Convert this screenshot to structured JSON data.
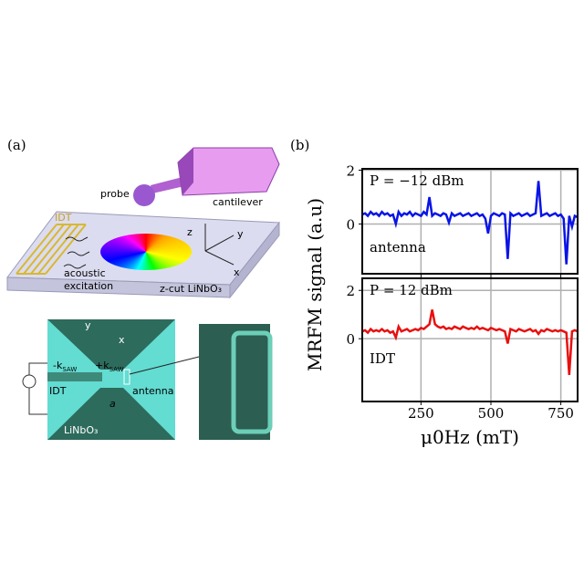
{
  "panel_a": {
    "label": "(a)",
    "probe": "probe",
    "cantilever": "cantilever",
    "idt_top": "IDT",
    "axis_z": "z",
    "axis_y": "y",
    "axis_x": "x",
    "acoustic": "acoustic",
    "excitation": "excitation",
    "substrate": "z-cut LiNbO₃",
    "micro": {
      "axis_y": "y",
      "axis_x": "x",
      "k_minus": "-k",
      "k_plus": "+k",
      "k_sub_minus": "SAW",
      "k_sub_plus": "SAW",
      "idt": "IDT",
      "antenna": "antenna",
      "a": "a",
      "substrate": "LiNbO₃"
    }
  },
  "chart_data": [
    {
      "type": "line",
      "panel_label": "(b)",
      "ylabel": "MRFM signal (a.u)",
      "color": "#0a14e6",
      "annotations": [
        "P = −12 dBm",
        "antenna"
      ],
      "grid": true,
      "xlim": [
        40,
        810
      ],
      "xticks": [
        250,
        500,
        750
      ],
      "ylim": [
        -1.85,
        2.05
      ],
      "yticks": [
        0,
        2
      ],
      "x": [
        40,
        50,
        60,
        70,
        80,
        90,
        100,
        110,
        120,
        130,
        140,
        150,
        160,
        170,
        180,
        190,
        200,
        210,
        220,
        230,
        240,
        250,
        260,
        270,
        280,
        290,
        300,
        310,
        320,
        330,
        340,
        350,
        360,
        370,
        380,
        390,
        400,
        410,
        420,
        430,
        440,
        450,
        460,
        470,
        480,
        490,
        500,
        510,
        520,
        530,
        540,
        550,
        560,
        570,
        580,
        590,
        600,
        610,
        620,
        630,
        640,
        650,
        660,
        670,
        680,
        690,
        700,
        710,
        720,
        730,
        740,
        750,
        760,
        770,
        780,
        790,
        800,
        810
      ],
      "values": [
        0.35,
        0.4,
        0.3,
        0.45,
        0.35,
        0.4,
        0.3,
        0.45,
        0.35,
        0.4,
        0.3,
        0.35,
        0.0,
        0.45,
        0.3,
        0.4,
        0.35,
        0.45,
        0.3,
        0.4,
        0.35,
        0.3,
        0.45,
        0.35,
        1.0,
        0.3,
        0.4,
        0.35,
        0.3,
        0.4,
        0.35,
        0.05,
        0.4,
        0.3,
        0.35,
        0.4,
        0.3,
        0.35,
        0.4,
        0.3,
        0.35,
        0.4,
        0.3,
        0.35,
        0.2,
        -0.35,
        0.3,
        0.4,
        0.35,
        0.3,
        0.4,
        0.35,
        -1.3,
        0.4,
        0.3,
        0.35,
        0.4,
        0.3,
        0.35,
        0.4,
        0.3,
        0.35,
        0.4,
        1.6,
        0.3,
        0.35,
        0.4,
        0.3,
        0.35,
        0.4,
        0.3,
        0.35,
        0.2,
        -1.5,
        0.3,
        -0.1,
        0.3,
        0.25
      ]
    },
    {
      "type": "line",
      "xlabel": "μ0Hz (mT)",
      "color": "#e81010",
      "annotations": [
        "P = 12 dBm",
        "IDT"
      ],
      "grid": true,
      "xlim": [
        40,
        810
      ],
      "xticks": [
        250,
        500,
        750
      ],
      "ylim": [
        -2.6,
        2.5
      ],
      "yticks": [
        0,
        2
      ],
      "x": [
        40,
        50,
        60,
        70,
        80,
        90,
        100,
        110,
        120,
        130,
        140,
        150,
        160,
        170,
        180,
        190,
        200,
        210,
        220,
        230,
        240,
        250,
        260,
        270,
        280,
        290,
        300,
        310,
        320,
        330,
        340,
        350,
        360,
        370,
        380,
        390,
        400,
        410,
        420,
        430,
        440,
        450,
        460,
        470,
        480,
        490,
        500,
        510,
        520,
        530,
        540,
        550,
        560,
        570,
        580,
        590,
        600,
        610,
        620,
        630,
        640,
        650,
        660,
        670,
        680,
        690,
        700,
        710,
        720,
        730,
        740,
        750,
        760,
        770,
        780,
        790,
        800,
        810
      ],
      "values": [
        0.3,
        0.35,
        0.25,
        0.4,
        0.3,
        0.35,
        0.3,
        0.4,
        0.3,
        0.35,
        0.25,
        0.3,
        0.05,
        0.5,
        0.3,
        0.35,
        0.4,
        0.3,
        0.35,
        0.4,
        0.35,
        0.45,
        0.4,
        0.5,
        0.6,
        1.2,
        0.6,
        0.5,
        0.45,
        0.5,
        0.4,
        0.45,
        0.4,
        0.5,
        0.45,
        0.4,
        0.5,
        0.45,
        0.4,
        0.45,
        0.4,
        0.5,
        0.4,
        0.45,
        0.4,
        0.35,
        0.45,
        0.4,
        0.35,
        0.4,
        0.35,
        0.3,
        -0.2,
        0.4,
        0.35,
        0.3,
        0.4,
        0.35,
        0.3,
        0.35,
        0.4,
        0.3,
        0.35,
        0.2,
        0.35,
        0.3,
        0.4,
        0.35,
        0.3,
        0.35,
        0.3,
        0.35,
        0.3,
        0.25,
        -1.5,
        0.3,
        0.35,
        0.3
      ]
    }
  ]
}
